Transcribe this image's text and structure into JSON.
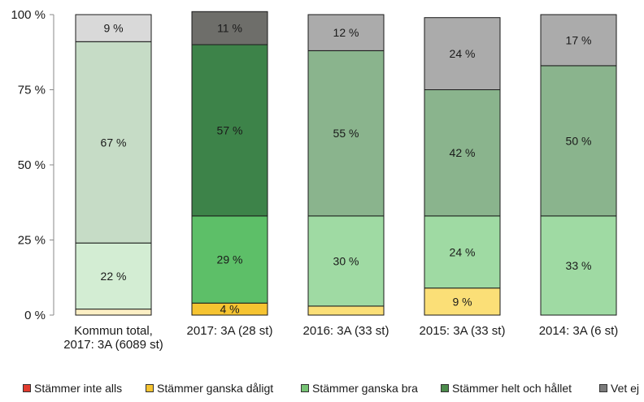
{
  "chart_data": {
    "type": "bar",
    "stacked": true,
    "percent": true,
    "title": "",
    "xlabel": "",
    "ylabel": "",
    "ylim": [
      0,
      100
    ],
    "y_ticks": [
      "0 %",
      "25 %",
      "50 %",
      "75 %",
      "100 %"
    ],
    "categories": [
      [
        "Kommun total,",
        "2017: 3A (6089 st)"
      ],
      [
        "2017: 3A (28 st)"
      ],
      [
        "2016: 3A (33 st)"
      ],
      [
        "2015: 3A (33 st)"
      ],
      [
        "2014: 3A (6 st)"
      ]
    ],
    "series": [
      {
        "name": "Stämmer inte alls",
        "legend_color": "#e23b2e",
        "colors": [
          "#f7d6d2",
          "#e23b2e",
          "#f3a49b",
          "#f3a49b",
          "#f3a49b"
        ],
        "values": [
          0,
          0,
          0,
          0,
          0
        ],
        "labels": [
          "",
          "",
          "",
          "",
          ""
        ]
      },
      {
        "name": "Stämmer ganska dåligt",
        "legend_color": "#f6c431",
        "colors": [
          "#fcefc4",
          "#f6c431",
          "#fbdf77",
          "#fbdf77",
          "#fbdf77"
        ],
        "values": [
          2,
          4,
          3,
          9,
          0
        ],
        "labels": [
          "",
          "4 %",
          "",
          "9 %",
          ""
        ]
      },
      {
        "name": "Stämmer ganska bra",
        "legend_color": "#76c374",
        "colors": [
          "#d3edd3",
          "#5dbf68",
          "#9fdaa3",
          "#9fdaa3",
          "#9fdaa3"
        ],
        "values": [
          22,
          29,
          30,
          24,
          33
        ],
        "labels": [
          "22 %",
          "29 %",
          "30 %",
          "24 %",
          "33 %"
        ]
      },
      {
        "name": "Stämmer helt och hållet",
        "legend_color": "#4c8c4c",
        "colors": [
          "#c6dcc6",
          "#3d8349",
          "#8ab48d",
          "#8ab48d",
          "#8ab48d"
        ],
        "values": [
          67,
          57,
          55,
          42,
          50
        ],
        "labels": [
          "67 %",
          "57 %",
          "55 %",
          "42 %",
          "50 %"
        ]
      },
      {
        "name": "Vet ej",
        "legend_color": "#7b7b7b",
        "colors": [
          "#d9d9d9",
          "#6e6e6a",
          "#ababab",
          "#ababab",
          "#ababab"
        ],
        "values": [
          9,
          11,
          12,
          24,
          17
        ],
        "labels": [
          "9 %",
          "11 %",
          "12 %",
          "24 %",
          "17 %"
        ]
      }
    ],
    "legend_position": "bottom"
  }
}
